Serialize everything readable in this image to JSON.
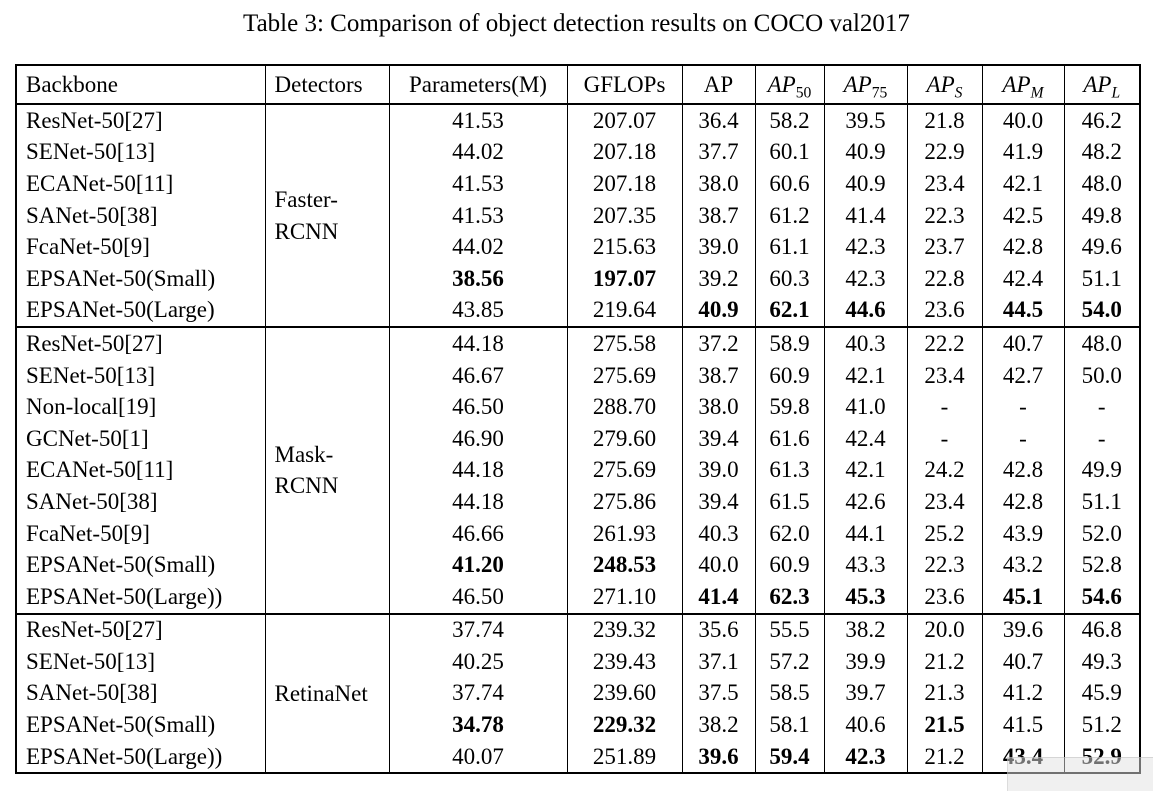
{
  "title": "Table 3: Comparison of object detection results on COCO val2017",
  "table": {
    "columns": [
      {
        "key": "backbone",
        "label": "Backbone",
        "align": "left"
      },
      {
        "key": "detector",
        "label": "Detectors",
        "align": "left"
      },
      {
        "key": "params",
        "label": "Parameters(M)"
      },
      {
        "key": "gflops",
        "label": "GFLOPs"
      },
      {
        "key": "ap",
        "label": "AP"
      },
      {
        "key": "ap50",
        "label": "AP",
        "italic": true,
        "sub": "50",
        "sub_italic": false
      },
      {
        "key": "ap75",
        "label": "AP",
        "italic": true,
        "sub": "75",
        "sub_italic": false
      },
      {
        "key": "aps",
        "label": "AP",
        "italic": true,
        "sub": "S",
        "sub_italic": true
      },
      {
        "key": "apm",
        "label": "AP",
        "italic": true,
        "sub": "M",
        "sub_italic": true
      },
      {
        "key": "apl",
        "label": "AP",
        "italic": true,
        "sub": "L",
        "sub_italic": true
      }
    ],
    "sections": [
      {
        "detector": [
          "Faster-",
          "RCNN"
        ],
        "rows": [
          {
            "backbone": "ResNet-50[27]",
            "params": "41.53",
            "gflops": "207.07",
            "ap": "36.4",
            "ap50": "58.2",
            "ap75": "39.5",
            "aps": "21.8",
            "apm": "40.0",
            "apl": "46.2",
            "bold": []
          },
          {
            "backbone": "SENet-50[13]",
            "params": "44.02",
            "gflops": "207.18",
            "ap": "37.7",
            "ap50": "60.1",
            "ap75": "40.9",
            "aps": "22.9",
            "apm": "41.9",
            "apl": "48.2",
            "bold": []
          },
          {
            "backbone": "ECANet-50[11]",
            "params": "41.53",
            "gflops": "207.18",
            "ap": "38.0",
            "ap50": "60.6",
            "ap75": "40.9",
            "aps": "23.4",
            "apm": "42.1",
            "apl": "48.0",
            "bold": []
          },
          {
            "backbone": "SANet-50[38]",
            "params": "41.53",
            "gflops": "207.35",
            "ap": "38.7",
            "ap50": "61.2",
            "ap75": "41.4",
            "aps": "22.3",
            "apm": "42.5",
            "apl": "49.8",
            "bold": []
          },
          {
            "backbone": "FcaNet-50[9]",
            "params": "44.02",
            "gflops": "215.63",
            "ap": "39.0",
            "ap50": "61.1",
            "ap75": "42.3",
            "aps": "23.7",
            "apm": "42.8",
            "apl": "49.6",
            "bold": []
          },
          {
            "backbone": "EPSANet-50(Small)",
            "params": "38.56",
            "gflops": "197.07",
            "ap": "39.2",
            "ap50": "60.3",
            "ap75": "42.3",
            "aps": "22.8",
            "apm": "42.4",
            "apl": "51.1",
            "bold": [
              "params",
              "gflops"
            ]
          },
          {
            "backbone": "EPSANet-50(Large)",
            "params": "43.85",
            "gflops": "219.64",
            "ap": "40.9",
            "ap50": "62.1",
            "ap75": "44.6",
            "aps": "23.6",
            "apm": "44.5",
            "apl": "54.0",
            "bold": [
              "ap",
              "ap50",
              "ap75",
              "apm",
              "apl"
            ]
          }
        ]
      },
      {
        "detector": [
          "Mask-",
          "RCNN"
        ],
        "rows": [
          {
            "backbone": "ResNet-50[27]",
            "params": "44.18",
            "gflops": "275.58",
            "ap": "37.2",
            "ap50": "58.9",
            "ap75": "40.3",
            "aps": "22.2",
            "apm": "40.7",
            "apl": "48.0",
            "bold": []
          },
          {
            "backbone": "SENet-50[13]",
            "params": "46.67",
            "gflops": "275.69",
            "ap": "38.7",
            "ap50": "60.9",
            "ap75": "42.1",
            "aps": "23.4",
            "apm": "42.7",
            "apl": "50.0",
            "bold": []
          },
          {
            "backbone": "Non-local[19]",
            "params": "46.50",
            "gflops": "288.70",
            "ap": "38.0",
            "ap50": "59.8",
            "ap75": "41.0",
            "aps": "-",
            "apm": "-",
            "apl": "-",
            "bold": []
          },
          {
            "backbone": "GCNet-50[1]",
            "params": "46.90",
            "gflops": "279.60",
            "ap": "39.4",
            "ap50": "61.6",
            "ap75": "42.4",
            "aps": "-",
            "apm": "-",
            "apl": "-",
            "bold": []
          },
          {
            "backbone": "ECANet-50[11]",
            "params": "44.18",
            "gflops": "275.69",
            "ap": "39.0",
            "ap50": "61.3",
            "ap75": "42.1",
            "aps": "24.2",
            "apm": "42.8",
            "apl": "49.9",
            "bold": []
          },
          {
            "backbone": "SANet-50[38]",
            "params": "44.18",
            "gflops": "275.86",
            "ap": "39.4",
            "ap50": "61.5",
            "ap75": "42.6",
            "aps": "23.4",
            "apm": "42.8",
            "apl": "51.1",
            "bold": []
          },
          {
            "backbone": "FcaNet-50[9]",
            "params": "46.66",
            "gflops": "261.93",
            "ap": "40.3",
            "ap50": "62.0",
            "ap75": "44.1",
            "aps": "25.2",
            "apm": "43.9",
            "apl": "52.0",
            "bold": []
          },
          {
            "backbone": "EPSANet-50(Small)",
            "params": "41.20",
            "gflops": "248.53",
            "ap": "40.0",
            "ap50": "60.9",
            "ap75": "43.3",
            "aps": "22.3",
            "apm": "43.2",
            "apl": "52.8",
            "bold": [
              "params",
              "gflops"
            ]
          },
          {
            "backbone": "EPSANet-50(Large))",
            "params": "46.50",
            "gflops": "271.10",
            "ap": "41.4",
            "ap50": "62.3",
            "ap75": "45.3",
            "aps": "23.6",
            "apm": "45.1",
            "apl": "54.6",
            "bold": [
              "ap",
              "ap50",
              "ap75",
              "apm",
              "apl"
            ]
          }
        ]
      },
      {
        "detector": [
          "RetinaNet"
        ],
        "rows": [
          {
            "backbone": "ResNet-50[27]",
            "params": "37.74",
            "gflops": "239.32",
            "ap": "35.6",
            "ap50": "55.5",
            "ap75": "38.2",
            "aps": "20.0",
            "apm": "39.6",
            "apl": "46.8",
            "bold": []
          },
          {
            "backbone": "SENet-50[13]",
            "params": "40.25",
            "gflops": "239.43",
            "ap": "37.1",
            "ap50": "57.2",
            "ap75": "39.9",
            "aps": "21.2",
            "apm": "40.7",
            "apl": "49.3",
            "bold": []
          },
          {
            "backbone": "SANet-50[38]",
            "params": "37.74",
            "gflops": "239.60",
            "ap": "37.5",
            "ap50": "58.5",
            "ap75": "39.7",
            "aps": "21.3",
            "apm": "41.2",
            "apl": "45.9",
            "bold": []
          },
          {
            "backbone": "EPSANet-50(Small)",
            "params": "34.78",
            "gflops": "229.32",
            "ap": "38.2",
            "ap50": "58.1",
            "ap75": "40.6",
            "aps": "21.5",
            "apm": "41.5",
            "apl": "51.2",
            "bold": [
              "params",
              "gflops",
              "aps"
            ]
          },
          {
            "backbone": "EPSANet-50(Large))",
            "params": "40.07",
            "gflops": "251.89",
            "ap": "39.6",
            "ap50": "59.4",
            "ap75": "42.3",
            "aps": "21.2",
            "apm": "43.4",
            "apl": "52.9",
            "bold": [
              "ap",
              "ap50",
              "ap75",
              "apm",
              "apl"
            ]
          }
        ]
      }
    ]
  }
}
